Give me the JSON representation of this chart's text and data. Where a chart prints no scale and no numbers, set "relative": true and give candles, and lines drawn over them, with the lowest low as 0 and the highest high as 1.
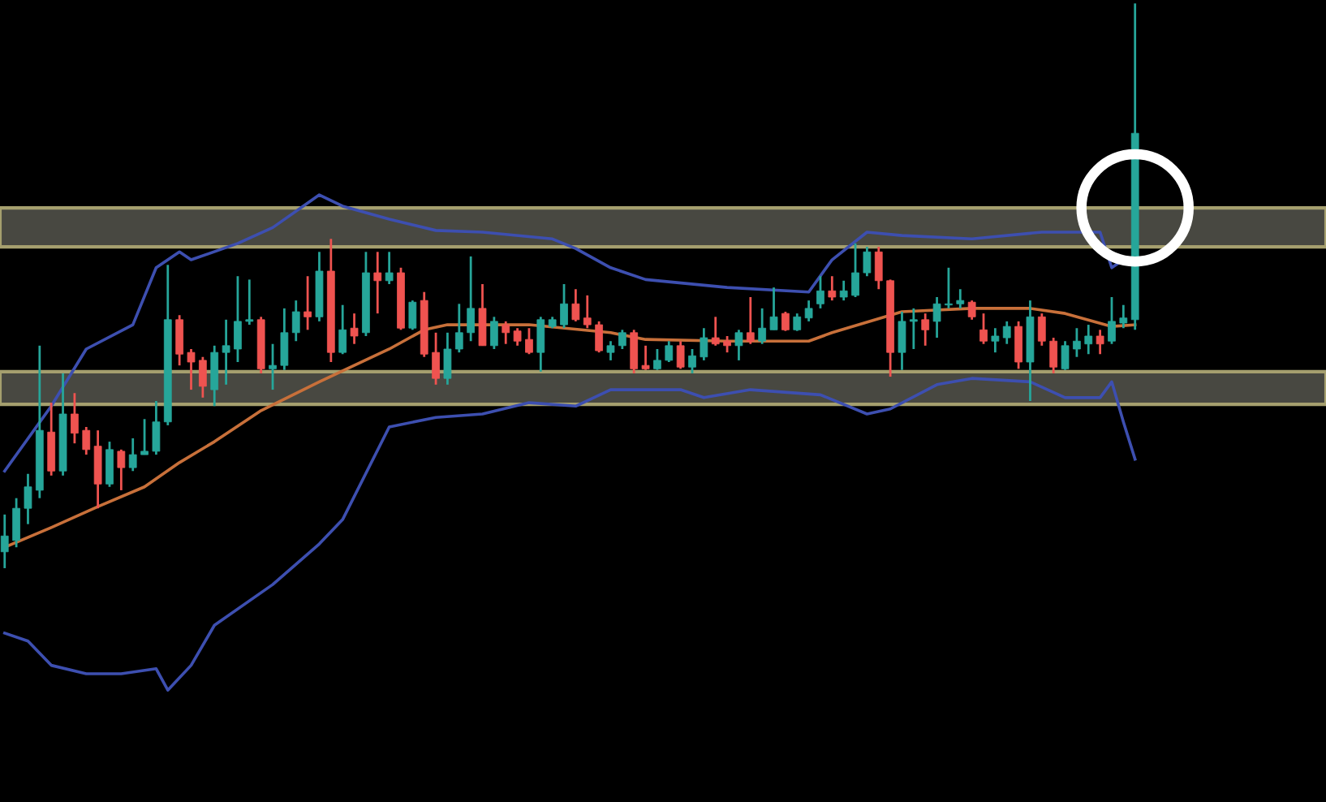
{
  "chart_data": {
    "type": "candlestick",
    "relative": true,
    "categories": [
      null,
      null,
      null,
      null,
      null,
      null,
      null,
      null,
      null,
      null,
      null,
      null,
      null,
      null,
      null,
      null,
      null,
      null,
      null,
      null,
      null,
      null,
      null,
      null,
      null,
      null,
      null,
      null,
      null,
      null,
      null,
      null,
      null,
      null,
      null,
      null,
      null,
      null,
      null,
      null,
      null,
      null,
      null,
      null,
      null,
      null,
      null,
      null,
      null,
      null,
      null,
      null,
      null,
      null,
      null,
      null,
      null,
      null,
      null,
      null,
      null,
      null,
      null,
      null,
      null,
      null,
      null,
      null,
      null,
      null,
      null,
      null,
      null,
      null,
      null,
      null,
      null,
      null,
      null,
      null,
      null,
      null,
      null,
      null,
      null,
      null,
      null,
      null,
      null,
      null,
      null,
      null,
      null,
      null,
      null,
      null,
      null,
      null
    ],
    "colors": [
      "#26a69a",
      "#26a69a",
      "#26a69a",
      "#26a69a",
      "#ef5350",
      "#26a69a",
      "#ef5350",
      "#ef5350",
      "#ef5350",
      "#26a69a",
      "#ef5350",
      "#26a69a",
      "#26a69a",
      "#26a69a",
      "#26a69a",
      "#ef5350",
      "#ef5350",
      "#ef5350",
      "#26a69a",
      "#26a69a",
      "#26a69a",
      "#26a69a",
      "#ef5350",
      "#26a69a",
      "#26a69a",
      "#26a69a",
      "#ef5350",
      "#26a69a",
      "#ef5350",
      "#26a69a",
      "#ef5350",
      "#26a69a",
      "#ef5350",
      "#26a69a",
      "#ef5350",
      "#26a69a",
      "#ef5350",
      "#ef5350",
      "#26a69a",
      "#26a69a",
      "#26a69a",
      "#ef5350",
      "#26a69a",
      "#ef5350",
      "#ef5350",
      "#ef5350",
      "#26a69a",
      "#26a69a",
      "#26a69a",
      "#ef5350",
      "#ef5350",
      "#ef5350",
      "#26a69a",
      "#26a69a",
      "#ef5350",
      "#ef5350",
      "#26a69a",
      "#26a69a",
      "#ef5350",
      "#26a69a",
      "#26a69a",
      "#ef5350",
      "#ef5350",
      "#26a69a",
      "#ef5350",
      "#26a69a",
      "#26a69a",
      "#ef5350",
      "#26a69a",
      "#26a69a",
      "#26a69a",
      "#ef5350",
      "#26a69a",
      "#26a69a",
      "#26a69a",
      "#ef5350",
      "#ef5350",
      "#26a69a",
      "#26a69a",
      "#ef5350",
      "#26a69a",
      "#26a69a",
      "#26a69a",
      "#ef5350",
      "#ef5350",
      "#26a69a",
      "#26a69a",
      "#ef5350",
      "#26a69a",
      "#ef5350",
      "#ef5350",
      "#26a69a",
      "#26a69a",
      "#26a69a",
      "#ef5350",
      "#26a69a",
      "#26a69a",
      "#26a69a"
    ],
    "ohlc": [
      [
        0.029,
        0.095,
        0,
        0.057
      ],
      [
        0.049,
        0.124,
        0.037,
        0.106
      ],
      [
        0.106,
        0.167,
        0.078,
        0.144
      ],
      [
        0.138,
        0.394,
        0.124,
        0.244
      ],
      [
        0.241,
        0.293,
        0.164,
        0.172
      ],
      [
        0.172,
        0.345,
        0.164,
        0.273
      ],
      [
        0.273,
        0.31,
        0.221,
        0.239
      ],
      [
        0.244,
        0.25,
        0.201,
        0.21
      ],
      [
        0.216,
        0.244,
        0.106,
        0.149
      ],
      [
        0.149,
        0.224,
        0.144,
        0.21
      ],
      [
        0.207,
        0.21,
        0.138,
        0.178
      ],
      [
        0.178,
        0.23,
        0.172,
        0.201
      ],
      [
        0.201,
        0.264,
        0.201,
        0.207
      ],
      [
        0.207,
        0.296,
        0.201,
        0.259
      ],
      [
        0.259,
        0.537,
        0.253,
        0.44
      ],
      [
        0.44,
        0.448,
        0.359,
        0.379
      ],
      [
        0.382,
        0.388,
        0.316,
        0.365
      ],
      [
        0.368,
        0.374,
        0.302,
        0.322
      ],
      [
        0.316,
        0.394,
        0.287,
        0.382
      ],
      [
        0.382,
        0.44,
        0.325,
        0.394
      ],
      [
        0.388,
        0.517,
        0.365,
        0.437
      ],
      [
        0.437,
        0.511,
        0.431,
        0.44
      ],
      [
        0.44,
        0.445,
        0.345,
        0.353
      ],
      [
        0.353,
        0.397,
        0.316,
        0.359
      ],
      [
        0.359,
        0.46,
        0.351,
        0.417
      ],
      [
        0.417,
        0.474,
        0.402,
        0.454
      ],
      [
        0.454,
        0.517,
        0.422,
        0.445
      ],
      [
        0.445,
        0.56,
        0.437,
        0.526
      ],
      [
        0.526,
        0.583,
        0.365,
        0.382
      ],
      [
        0.382,
        0.466,
        0.379,
        0.422
      ],
      [
        0.425,
        0.451,
        0.397,
        0.411
      ],
      [
        0.417,
        0.56,
        0.411,
        0.523
      ],
      [
        0.523,
        0.56,
        0.451,
        0.509
      ],
      [
        0.509,
        0.56,
        0.503,
        0.523
      ],
      [
        0.523,
        0.532,
        0.422,
        0.425
      ],
      [
        0.425,
        0.474,
        0.422,
        0.471
      ],
      [
        0.474,
        0.489,
        0.374,
        0.379
      ],
      [
        0.382,
        0.417,
        0.325,
        0.336
      ],
      [
        0.336,
        0.417,
        0.325,
        0.388
      ],
      [
        0.388,
        0.468,
        0.382,
        0.417
      ],
      [
        0.417,
        0.552,
        0.402,
        0.46
      ],
      [
        0.46,
        0.503,
        0.394,
        0.394
      ],
      [
        0.394,
        0.445,
        0.388,
        0.437
      ],
      [
        0.431,
        0.437,
        0.397,
        0.417
      ],
      [
        0.42,
        0.425,
        0.394,
        0.402
      ],
      [
        0.405,
        0.425,
        0.379,
        0.382
      ],
      [
        0.382,
        0.445,
        0.348,
        0.44
      ],
      [
        0.428,
        0.445,
        0.425,
        0.44
      ],
      [
        0.431,
        0.503,
        0.425,
        0.468
      ],
      [
        0.468,
        0.494,
        0.437,
        0.44
      ],
      [
        0.443,
        0.483,
        0.425,
        0.431
      ],
      [
        0.431,
        0.437,
        0.382,
        0.385
      ],
      [
        0.382,
        0.402,
        0.368,
        0.394
      ],
      [
        0.394,
        0.422,
        0.388,
        0.417
      ],
      [
        0.417,
        0.422,
        0.345,
        0.353
      ],
      [
        0.359,
        0.394,
        0.351,
        0.353
      ],
      [
        0.353,
        0.388,
        0.351,
        0.368
      ],
      [
        0.368,
        0.402,
        0.365,
        0.394
      ],
      [
        0.394,
        0.402,
        0.353,
        0.356
      ],
      [
        0.356,
        0.388,
        0.345,
        0.376
      ],
      [
        0.374,
        0.425,
        0.368,
        0.408
      ],
      [
        0.408,
        0.445,
        0.394,
        0.397
      ],
      [
        0.402,
        0.411,
        0.382,
        0.394
      ],
      [
        0.394,
        0.422,
        0.368,
        0.417
      ],
      [
        0.417,
        0.48,
        0.397,
        0.402
      ],
      [
        0.402,
        0.46,
        0.397,
        0.425
      ],
      [
        0.422,
        0.497,
        0.422,
        0.445
      ],
      [
        0.451,
        0.454,
        0.42,
        0.422
      ],
      [
        0.422,
        0.451,
        0.42,
        0.445
      ],
      [
        0.443,
        0.474,
        0.437,
        0.46
      ],
      [
        0.468,
        0.517,
        0.46,
        0.491
      ],
      [
        0.491,
        0.517,
        0.474,
        0.48
      ],
      [
        0.48,
        0.509,
        0.474,
        0.491
      ],
      [
        0.483,
        0.575,
        0.48,
        0.523
      ],
      [
        0.523,
        0.569,
        0.517,
        0.56
      ],
      [
        0.56,
        0.569,
        0.494,
        0.509
      ],
      [
        0.509,
        0.511,
        0.339,
        0.382
      ],
      [
        0.382,
        0.454,
        0.351,
        0.437
      ],
      [
        0.437,
        0.46,
        0.388,
        0.44
      ],
      [
        0.44,
        0.451,
        0.394,
        0.422
      ],
      [
        0.437,
        0.48,
        0.408,
        0.468
      ],
      [
        0.466,
        0.532,
        0.46,
        0.468
      ],
      [
        0.468,
        0.494,
        0.46,
        0.474
      ],
      [
        0.471,
        0.474,
        0.44,
        0.445
      ],
      [
        0.422,
        0.451,
        0.397,
        0.402
      ],
      [
        0.402,
        0.425,
        0.382,
        0.411
      ],
      [
        0.408,
        0.437,
        0.397,
        0.428
      ],
      [
        0.428,
        0.437,
        0.353,
        0.365
      ],
      [
        0.365,
        0.474,
        0.296,
        0.445
      ],
      [
        0.445,
        0.451,
        0.394,
        0.402
      ],
      [
        0.402,
        0.408,
        0.345,
        0.356
      ],
      [
        0.353,
        0.402,
        0.351,
        0.394
      ],
      [
        0.388,
        0.425,
        0.374,
        0.402
      ],
      [
        0.397,
        0.431,
        0.379,
        0.411
      ],
      [
        0.411,
        0.422,
        0.379,
        0.397
      ],
      [
        0.402,
        0.48,
        0.397,
        0.437
      ],
      [
        0.434,
        0.466,
        0.425,
        0.443
      ],
      [
        0.44,
        1,
        0.422,
        0.77
      ]
    ],
    "series": [
      {
        "type": "line",
        "color": "#3d4fb0",
        "values": [
          0.172,
          null,
          null,
          null,
          0.287,
          null,
          null,
          0.388,
          null,
          null,
          null,
          0.431,
          null,
          0.532,
          null,
          0.56,
          0.546,
          null,
          null,
          null,
          0.575,
          null,
          null,
          0.603,
          null,
          null,
          null,
          0.661,
          null,
          0.641,
          null,
          null,
          null,
          0.618,
          null,
          null,
          null,
          0.598,
          null,
          null,
          null,
          0.595,
          null,
          null,
          null,
          null,
          null,
          0.583,
          null,
          0.566,
          null,
          null,
          0.532,
          null,
          null,
          0.511,
          null,
          null,
          null,
          null,
          null,
          null,
          0.497,
          null,
          null,
          null,
          null,
          null,
          null,
          0.489,
          null,
          0.546,
          null,
          null,
          0.595,
          null,
          null,
          0.589,
          null,
          null,
          null,
          null,
          null,
          0.583,
          null,
          null,
          null,
          null,
          null,
          0.595,
          null,
          null,
          null,
          null,
          0.595,
          0.532,
          0.546,
          null
        ]
      },
      {
        "type": "line",
        "color": "#c8703a",
        "values": [
          0.037,
          null,
          null,
          null,
          0.072,
          null,
          null,
          null,
          0.109,
          null,
          null,
          null,
          0.144,
          null,
          null,
          0.187,
          null,
          null,
          0.224,
          null,
          null,
          null,
          0.279,
          null,
          null,
          null,
          null,
          0.33,
          null,
          null,
          null,
          null,
          null,
          0.388,
          null,
          null,
          0.422,
          null,
          0.431,
          null,
          null,
          null,
          null,
          null,
          null,
          0.431,
          null,
          null,
          null,
          null,
          null,
          null,
          0.417,
          null,
          null,
          0.405,
          null,
          null,
          null,
          null,
          null,
          null,
          0.402,
          null,
          null,
          null,
          null,
          null,
          null,
          0.402,
          null,
          0.417,
          null,
          null,
          null,
          null,
          null,
          0.454,
          null,
          null,
          null,
          null,
          null,
          0.46,
          null,
          null,
          null,
          null,
          0.46,
          null,
          null,
          0.451,
          null,
          null,
          null,
          0.428,
          null,
          0.431
        ]
      },
      {
        "type": "line",
        "color": "#3d4fb0",
        "values": [
          -0.115,
          null,
          -0.129,
          null,
          -0.172,
          null,
          null,
          -0.187,
          null,
          null,
          -0.187,
          null,
          null,
          -0.178,
          -0.216,
          null,
          -0.172,
          null,
          -0.101,
          null,
          null,
          null,
          null,
          -0.029,
          null,
          null,
          null,
          0.043,
          null,
          0.086,
          null,
          null,
          null,
          0.25,
          null,
          null,
          null,
          0.267,
          null,
          null,
          null,
          0.273,
          null,
          null,
          null,
          0.293,
          null,
          null,
          null,
          0.287,
          null,
          null,
          0.316,
          null,
          null,
          null,
          null,
          null,
          0.316,
          null,
          0.302,
          null,
          null,
          null,
          0.316,
          null,
          null,
          null,
          null,
          null,
          0.307,
          null,
          null,
          null,
          0.273,
          null,
          0.282,
          null,
          null,
          null,
          0.325,
          null,
          null,
          0.336,
          null,
          null,
          null,
          null,
          0.33,
          null,
          null,
          0.302,
          null,
          null,
          0.302,
          0.33,
          0.259,
          0.193
        ]
      }
    ],
    "bands": [
      {
        "axis": "y",
        "from": 0.569,
        "to": 0.638,
        "color": "#5a5a52"
      },
      {
        "axis": "y",
        "from": 0.29,
        "to": 0.348,
        "color": "#5a5a52"
      }
    ]
  }
}
